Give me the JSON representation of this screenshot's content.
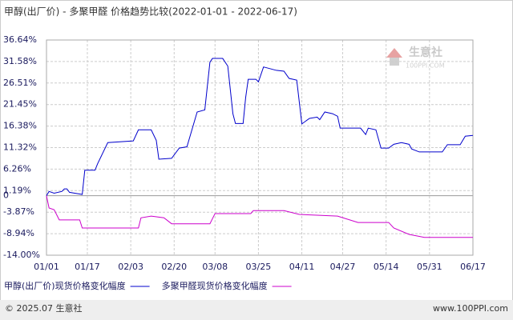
{
  "chart_data": {
    "type": "line",
    "title": "甲醇(出厂价) - 多聚甲醛 价格趋势比较(2022-01-01 - 2022-06-17)",
    "xlim": [
      "01/01",
      "06/17"
    ],
    "xticks": [
      "01/01",
      "01/17",
      "02/03",
      "02/20",
      "03/08",
      "03/25",
      "04/11",
      "04/27",
      "05/14",
      "05/31",
      "06/17"
    ],
    "ylim": [
      -14.0,
      36.64
    ],
    "yticks": [
      {
        "value": 36.64,
        "label": "36.64%"
      },
      {
        "value": 31.58,
        "label": "31.58%"
      },
      {
        "value": 26.51,
        "label": "26.51%"
      },
      {
        "value": 21.45,
        "label": "21.45%"
      },
      {
        "value": 16.38,
        "label": "16.38%"
      },
      {
        "value": 11.32,
        "label": "11.32%"
      },
      {
        "value": 6.26,
        "label": "6.26%"
      },
      {
        "value": 1.19,
        "label": "1.19%"
      },
      0,
      {
        "value": -3.87,
        "label": "-3.87%"
      },
      {
        "value": -8.94,
        "label": "-8.94%"
      },
      {
        "value": -14.0,
        "label": "-14.00%"
      }
    ],
    "grid": true,
    "series": [
      {
        "name": "甲醇(出厂价)现货价格变化幅度",
        "color": "#0000cc",
        "x": [
          "01/01",
          "01/02",
          "01/04",
          "01/07",
          "01/08",
          "01/09",
          "01/10",
          "01/13",
          "01/15",
          "01/16",
          "01/20",
          "01/21",
          "01/25",
          "02/04",
          "02/06",
          "02/11",
          "02/13",
          "02/14",
          "02/19",
          "02/22",
          "02/25",
          "03/01",
          "03/04",
          "03/06",
          "03/07",
          "03/11",
          "03/13",
          "03/15",
          "03/16",
          "03/19",
          "03/20",
          "03/21",
          "03/24",
          "03/25",
          "03/27",
          "04/01",
          "04/04",
          "04/06",
          "04/09",
          "04/11",
          "04/14",
          "04/17",
          "04/18",
          "04/20",
          "04/23",
          "04/25",
          "04/26",
          "05/04",
          "05/06",
          "05/07",
          "05/10",
          "05/12",
          "05/15",
          "05/17",
          "05/20",
          "05/23",
          "05/24",
          "05/27",
          "06/05",
          "06/07",
          "06/12",
          "06/14",
          "06/17"
        ],
        "values": [
          0,
          1.0,
          0.6,
          1.0,
          1.6,
          1.6,
          0.8,
          0.5,
          0.3,
          6.0,
          6.0,
          7.5,
          12.5,
          12.9,
          15.5,
          15.5,
          13.0,
          8.6,
          8.8,
          11.2,
          11.5,
          19.7,
          20.2,
          31.4,
          32.3,
          32.3,
          30.5,
          19.3,
          17.0,
          17.0,
          23.1,
          27.4,
          27.4,
          26.8,
          30.3,
          29.5,
          29.3,
          27.6,
          27.2,
          16.9,
          18.2,
          18.5,
          17.9,
          19.7,
          19.3,
          18.7,
          15.9,
          15.9,
          14.4,
          15.9,
          15.5,
          11.2,
          11.2,
          12.1,
          12.5,
          12.1,
          11.0,
          10.3,
          10.3,
          12.0,
          12.0,
          14.0,
          14.2
        ]
      },
      {
        "name": "多聚甲醛现货价格变化幅度",
        "color": "#cc00cc",
        "x": [
          "01/01",
          "01/02",
          "01/04",
          "01/06",
          "01/14",
          "01/15",
          "02/06",
          "02/07",
          "02/11",
          "02/16",
          "02/19",
          "03/06",
          "03/08",
          "03/22",
          "03/23",
          "04/04",
          "04/10",
          "04/25",
          "05/03",
          "05/15",
          "05/17",
          "05/23",
          "05/29",
          "06/17"
        ],
        "values": [
          0,
          -2.9,
          -3.3,
          -5.7,
          -5.7,
          -7.6,
          -7.6,
          -5.2,
          -4.8,
          -5.2,
          -6.6,
          -6.6,
          -4.2,
          -4.2,
          -3.5,
          -3.5,
          -4.4,
          -4.8,
          -6.3,
          -6.3,
          -7.6,
          -9.1,
          -9.8,
          -9.8
        ]
      }
    ]
  },
  "watermark": {
    "name": "生意社",
    "site": "100PPI.COM"
  },
  "footer": {
    "copyright": "© 2025.07 生意社",
    "website": "www.100PPI.com"
  }
}
